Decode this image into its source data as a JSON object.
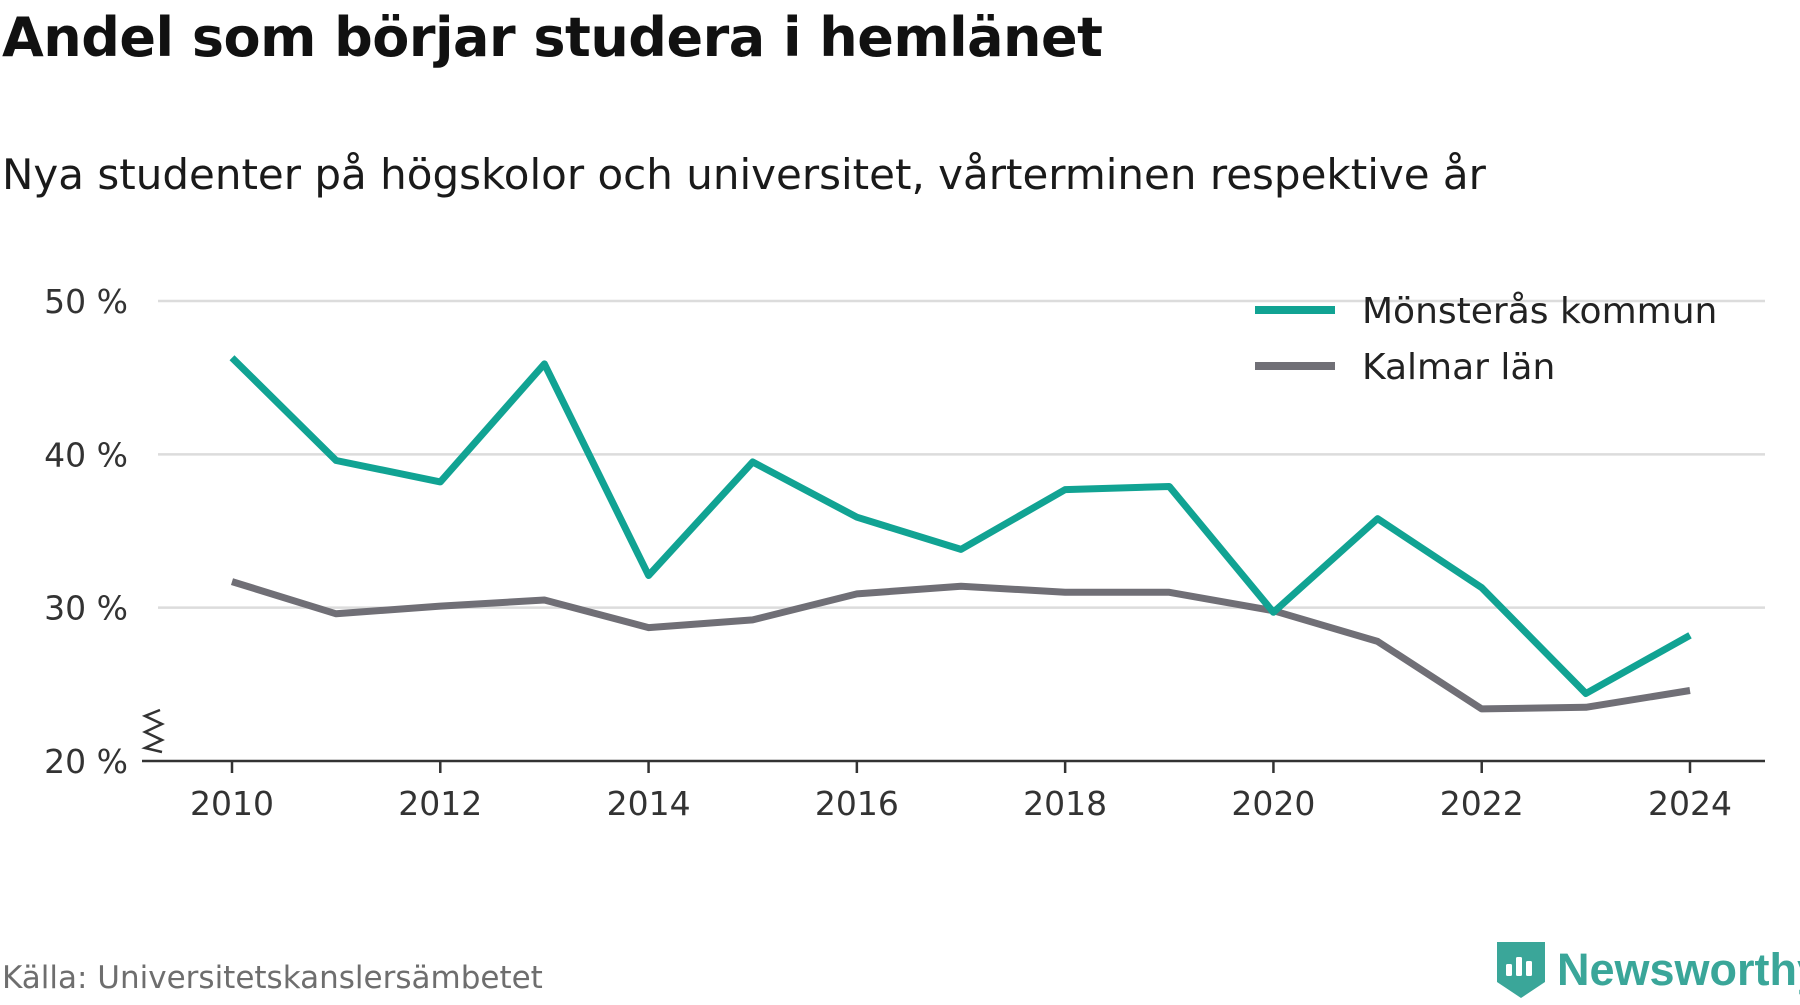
{
  "header": {
    "title": "Andel som börjar studera i hemlänet",
    "subtitle": "Nya studenter på högskolor och universitet, vårterminen respektive år"
  },
  "footer": {
    "source": "Källa: Universitetskanslersämbetet",
    "brand": "Newsworthy",
    "brand_icon": "bar-chart-shield-icon"
  },
  "colors": {
    "series_1": "#11a393",
    "series_2": "#706f76",
    "grid": "#dcdcdc",
    "axis": "#333333",
    "brand": "#3aa699"
  },
  "chart_data": {
    "type": "line",
    "title": "Andel som börjar studera i hemlänet",
    "subtitle": "Nya studenter på högskolor och universitet, vårterminen respektive år",
    "x": [
      2010,
      2011,
      2012,
      2013,
      2014,
      2015,
      2016,
      2017,
      2018,
      2019,
      2020,
      2021,
      2022,
      2023,
      2024
    ],
    "x_ticks": [
      2010,
      2012,
      2014,
      2016,
      2018,
      2020,
      2022,
      2024
    ],
    "y_ticks": [
      20,
      30,
      40,
      50
    ],
    "y_tick_labels": [
      "20 %",
      "30 %",
      "40 %",
      "50 %"
    ],
    "ylim": [
      20,
      50
    ],
    "y_axis_break": true,
    "grid": "horizontal",
    "legend_position": "top-right",
    "series": [
      {
        "name": "Mönsterås kommun",
        "color": "#11a393",
        "values": [
          46.3,
          39.6,
          38.2,
          45.9,
          32.1,
          39.5,
          35.9,
          33.8,
          37.7,
          37.9,
          29.7,
          35.8,
          31.3,
          24.4,
          28.2
        ]
      },
      {
        "name": "Kalmar län",
        "color": "#706f76",
        "values": [
          31.7,
          29.6,
          30.1,
          30.5,
          28.7,
          29.2,
          30.9,
          31.4,
          31.0,
          31.0,
          29.8,
          27.8,
          23.4,
          23.5,
          24.6
        ]
      }
    ]
  }
}
